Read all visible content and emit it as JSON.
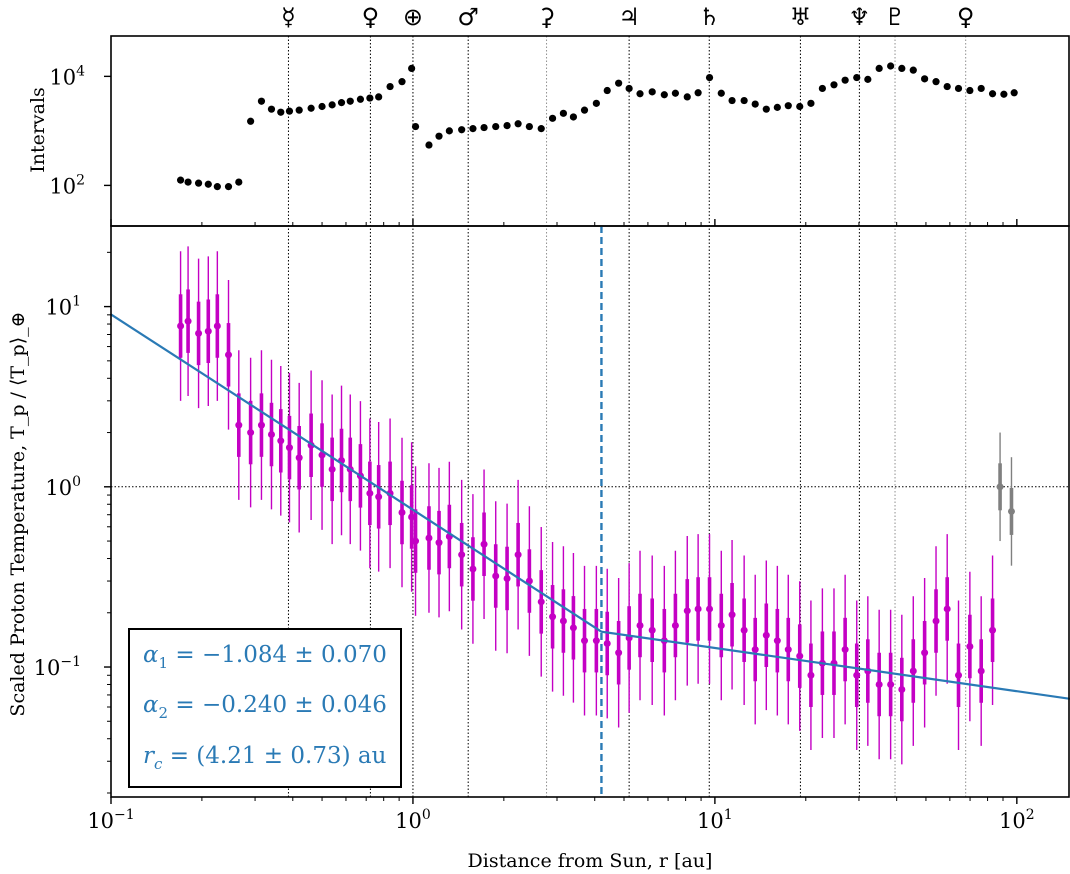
{
  "chart_data": [
    {
      "type": "scatter",
      "panel": "top",
      "ylabel": "Intervals",
      "yscale": "log",
      "xscale": "log",
      "xlim": [
        0.1,
        150
      ],
      "ylim": [
        18,
        55000
      ],
      "yticks": [
        {
          "value": 100,
          "label": "10",
          "exp": "2"
        },
        {
          "value": 10000,
          "label": "10",
          "exp": "4"
        }
      ],
      "points": {
        "r": [
          0.17,
          0.18,
          0.195,
          0.21,
          0.225,
          0.245,
          0.265,
          0.29,
          0.315,
          0.34,
          0.365,
          0.39,
          0.42,
          0.46,
          0.5,
          0.54,
          0.58,
          0.62,
          0.67,
          0.72,
          0.77,
          0.84,
          0.92,
          0.99,
          1.02,
          1.13,
          1.22,
          1.32,
          1.45,
          1.58,
          1.72,
          1.88,
          2.05,
          2.23,
          2.43,
          2.66,
          2.9,
          3.15,
          3.4,
          3.7,
          4.05,
          4.4,
          4.8,
          5.2,
          5.65,
          6.2,
          6.8,
          7.4,
          8.1,
          8.8,
          9.6,
          10.5,
          11.4,
          12.5,
          13.6,
          14.8,
          16.1,
          17.5,
          19.1,
          20.8,
          22.7,
          24.8,
          27.0,
          29.5,
          32.1,
          35.0,
          38.2,
          41.6,
          45.4,
          49.5,
          54.0,
          58.8,
          64.1,
          69.9,
          76.2,
          83.1,
          90.6,
          98.0
        ],
        "count": [
          125,
          115,
          110,
          105,
          95,
          95,
          115,
          1500,
          3500,
          2500,
          2200,
          2300,
          2400,
          2600,
          2800,
          3000,
          3300,
          3500,
          3800,
          4000,
          4200,
          6500,
          8000,
          14000,
          1200,
          550,
          800,
          1000,
          1050,
          1100,
          1150,
          1200,
          1250,
          1350,
          1200,
          1100,
          1700,
          2100,
          1800,
          2400,
          3200,
          5500,
          7500,
          6000,
          4800,
          5200,
          4600,
          4900,
          4200,
          5000,
          9500,
          4900,
          3600,
          3600,
          3100,
          2500,
          2700,
          2900,
          2800,
          3200,
          6000,
          7000,
          8500,
          9500,
          8800,
          14000,
          15500,
          14000,
          13000,
          9000,
          8000,
          6500,
          6000,
          5500,
          6000,
          4800,
          4700,
          5000
        ]
      }
    },
    {
      "type": "scatter",
      "panel": "bottom",
      "xlabel": "Distance from Sun, r [au]",
      "ylabel": "Scaled Proton Temperature, T_p / ⟨T_p⟩_⊕",
      "xscale": "log",
      "yscale": "log",
      "xlim": [
        0.1,
        150
      ],
      "ylim": [
        0.019,
        28
      ],
      "xticks": [
        {
          "value": 0.1,
          "label": "10",
          "exp": "−1"
        },
        {
          "value": 1,
          "label": "10",
          "exp": "0"
        },
        {
          "value": 10,
          "label": "10",
          "exp": "1"
        },
        {
          "value": 100,
          "label": "10",
          "exp": "2"
        }
      ],
      "yticks": [
        {
          "value": 0.1,
          "label": "10",
          "exp": "−1"
        },
        {
          "value": 1,
          "label": "10",
          "exp": "0"
        },
        {
          "value": 10,
          "label": "10",
          "exp": "1"
        }
      ],
      "reference_line_y": 1.0,
      "break_radius": 4.21,
      "series": [
        {
          "role": "data",
          "color": "#c400c4",
          "r": [
            0.17,
            0.18,
            0.195,
            0.21,
            0.225,
            0.245,
            0.265,
            0.29,
            0.315,
            0.34,
            0.365,
            0.39,
            0.42,
            0.46,
            0.5,
            0.54,
            0.58,
            0.62,
            0.67,
            0.72,
            0.77,
            0.84,
            0.92,
            0.99,
            1.02,
            1.13,
            1.22,
            1.32,
            1.45,
            1.58,
            1.72,
            1.88,
            2.05,
            2.23,
            2.43,
            2.66,
            2.9,
            3.15,
            3.4,
            3.7,
            4.05,
            4.4,
            4.8,
            5.2,
            5.65,
            6.2,
            6.8,
            7.4,
            8.1,
            8.8,
            9.6,
            10.5,
            11.4,
            12.5,
            13.6,
            14.8,
            16.1,
            17.5,
            19.1,
            20.8,
            22.7,
            24.8,
            27.0,
            29.5,
            32.1,
            35.0,
            38.2,
            41.6,
            45.4,
            49.5,
            54.0,
            58.8,
            64.1,
            69.9,
            76.2,
            83.1
          ],
          "T": [
            7.8,
            8.3,
            7.1,
            7.3,
            7.8,
            5.4,
            2.2,
            2.0,
            2.2,
            1.95,
            1.8,
            1.65,
            1.45,
            1.7,
            1.5,
            1.25,
            1.4,
            1.25,
            1.15,
            0.92,
            0.88,
            0.92,
            0.72,
            0.68,
            0.5,
            0.52,
            0.49,
            0.53,
            0.42,
            0.35,
            0.48,
            0.32,
            0.31,
            0.42,
            0.3,
            0.23,
            0.19,
            0.18,
            0.165,
            0.14,
            0.14,
            0.135,
            0.12,
            0.145,
            0.17,
            0.16,
            0.14,
            0.17,
            0.205,
            0.21,
            0.21,
            0.17,
            0.195,
            0.16,
            0.125,
            0.15,
            0.14,
            0.125,
            0.115,
            0.09,
            0.105,
            0.105,
            0.125,
            0.09,
            0.095,
            0.08,
            0.08,
            0.075,
            0.095,
            0.12,
            0.18,
            0.21,
            0.09,
            0.13,
            0.095,
            0.16
          ],
          "err_factor_outer": 2.6,
          "err_factor_inner": 1.5
        },
        {
          "role": "outer-heliosphere",
          "color": "#808080",
          "r": [
            88,
            96
          ],
          "T": [
            1.0,
            0.73
          ],
          "err_factor_outer": 2.0,
          "err_factor_inner": 1.35
        },
        {
          "role": "broken-power-law-fit",
          "color": "#2a7ab5",
          "alpha1": -1.084,
          "alpha2": -0.24,
          "rc": 4.21,
          "T_at_rc": 0.157
        }
      ],
      "annotations": {
        "alpha1": {
          "symbol": "α",
          "sub": "1",
          "text": " = −1.084 ± 0.070"
        },
        "alpha2": {
          "symbol": "α",
          "sub": "2",
          "text": " = −0.240 ± 0.046"
        },
        "rc": {
          "symbol": "r",
          "sub": "c",
          "text": " = (4.21 ± 0.73) au"
        }
      }
    }
  ],
  "planets": [
    {
      "name": "mercury",
      "glyph": "☿",
      "r": 0.387,
      "color": "#000000",
      "line": "#000000"
    },
    {
      "name": "venus",
      "glyph": "♀",
      "r": 0.723,
      "color": "#000000",
      "line": "#000000"
    },
    {
      "name": "earth",
      "glyph": "⊕",
      "r": 1.0,
      "color": "#000000",
      "line": "#000000"
    },
    {
      "name": "mars",
      "glyph": "♂",
      "r": 1.524,
      "color": "#000000",
      "line": "#000000"
    },
    {
      "name": "ceres",
      "glyph": "⚳",
      "r": 2.77,
      "color": "#909090",
      "line": "#909090"
    },
    {
      "name": "jupiter",
      "glyph": "♃",
      "r": 5.2,
      "color": "#000000",
      "line": "#000000"
    },
    {
      "name": "saturn",
      "glyph": "♄",
      "r": 9.58,
      "color": "#000000",
      "line": "#000000"
    },
    {
      "name": "uranus",
      "glyph": "♅",
      "r": 19.2,
      "color": "#000000",
      "line": "#000000"
    },
    {
      "name": "neptune",
      "glyph": "♆",
      "r": 30.1,
      "color": "#000000",
      "line": "#000000"
    },
    {
      "name": "pluto",
      "glyph": "♇",
      "r": 39.5,
      "color": "#909090",
      "line": "#909090"
    },
    {
      "name": "eris",
      "glyph": "♀",
      "r": 67.7,
      "color": "#909090",
      "line": "#909090"
    }
  ]
}
